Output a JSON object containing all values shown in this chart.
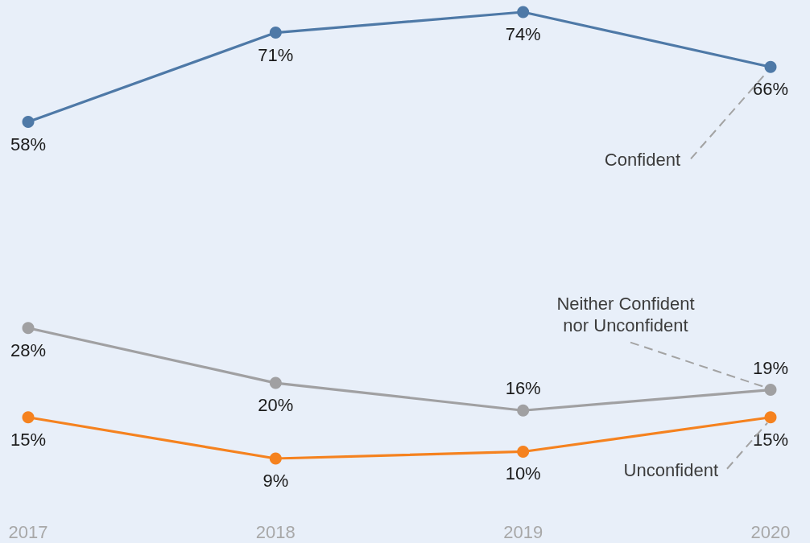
{
  "chart_data": {
    "type": "line",
    "categories": [
      "2017",
      "2018",
      "2019",
      "2020"
    ],
    "marker": "circle",
    "series": [
      {
        "name": "Confident",
        "color": "#4e79a7",
        "values": [
          58,
          71,
          74,
          66
        ],
        "value_labels": [
          "58%",
          "71%",
          "74%",
          "66%"
        ]
      },
      {
        "name": "Neither Confident nor Unconfident",
        "color": "#a0a0a2",
        "values": [
          28,
          20,
          16,
          19
        ],
        "value_labels": [
          "28%",
          "20%",
          "16%",
          "19%"
        ]
      },
      {
        "name": "Unconfident",
        "color": "#f5821f",
        "values": [
          15,
          9,
          10,
          15
        ],
        "value_labels": [
          "15%",
          "9%",
          "10%",
          "15%"
        ]
      }
    ]
  }
}
